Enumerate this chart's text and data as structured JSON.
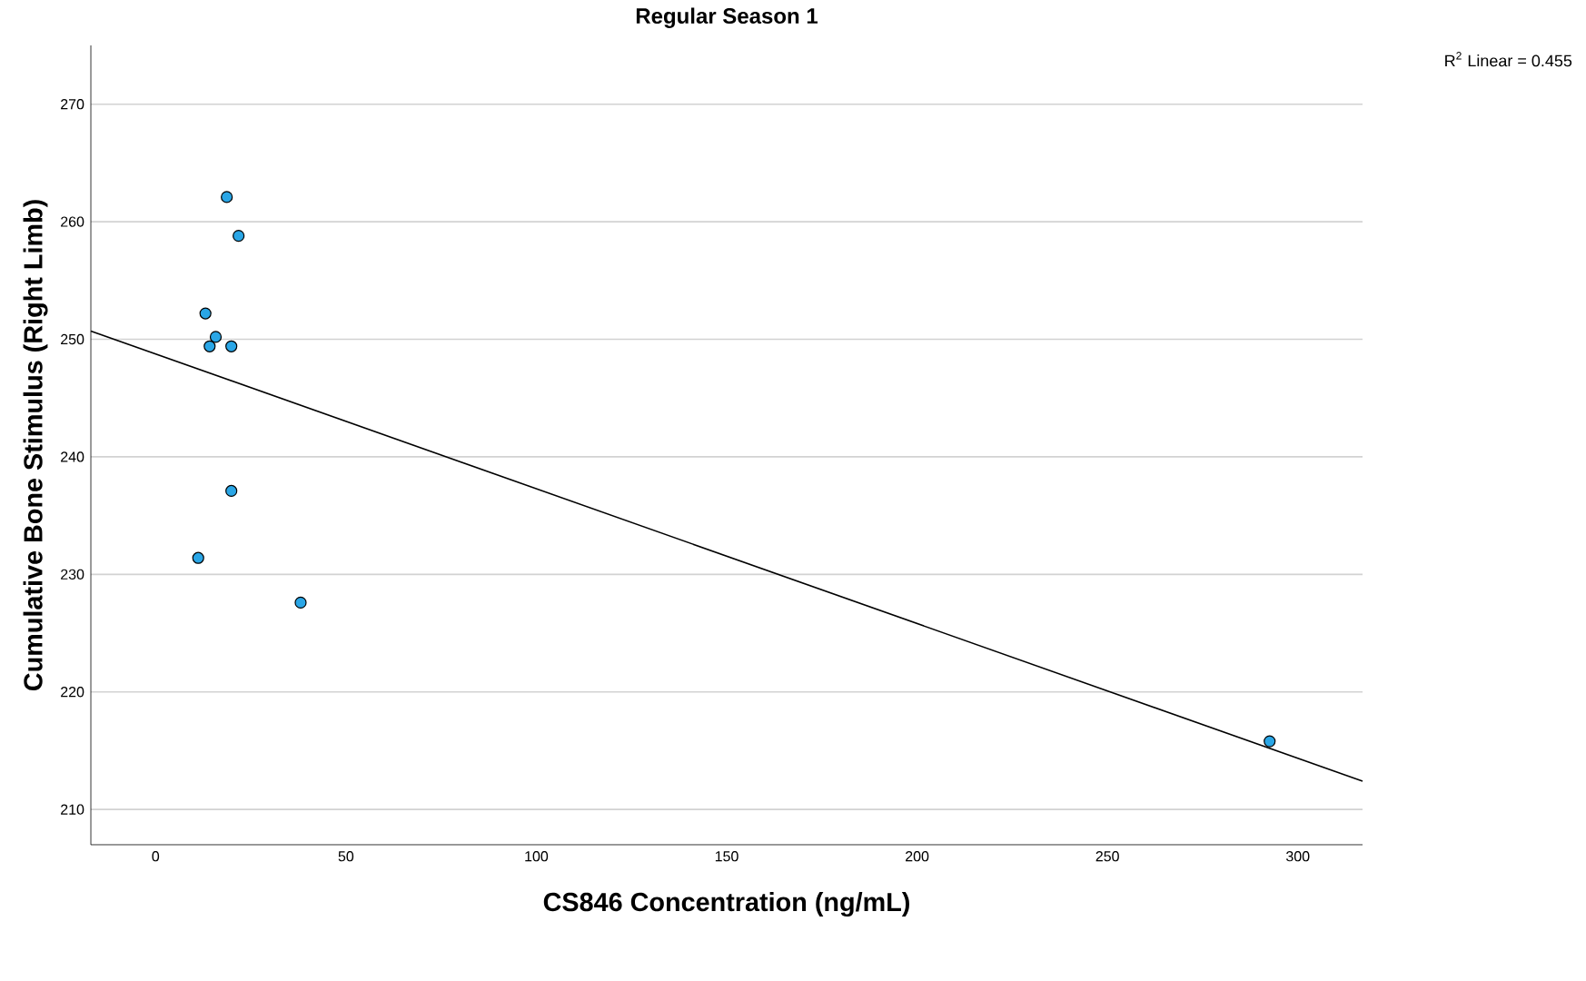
{
  "chart_data": {
    "type": "scatter",
    "title": "Regular Season 1",
    "xlabel": "CS846 Concentration (ng/mL)",
    "ylabel": "Cumulative Bone Stimulus (Right Limb)",
    "annotations": [
      "R$^{2}$ Linear = 0.455"
    ],
    "xlim": [
      -17,
      317
    ],
    "ylim": [
      207,
      275
    ],
    "xticks": [
      0,
      50,
      100,
      150,
      200,
      250,
      300
    ],
    "yticks": [
      210,
      220,
      230,
      240,
      250,
      260,
      270
    ],
    "grid": "y",
    "marker": "circle",
    "series": [
      {
        "type": "scatter",
        "color": "#2aa6e6",
        "x": [
          18.7,
          21.8,
          13.1,
          15.8,
          14.2,
          19.9,
          19.9,
          11.2,
          38.1,
          292.6
        ],
        "values": [
          262.1,
          258.8,
          252.2,
          250.2,
          249.4,
          249.4,
          237.1,
          231.4,
          227.6,
          215.8
        ]
      },
      {
        "type": "line",
        "marker": "none",
        "color": "#000000",
        "x": [
          -17,
          317
        ],
        "values": [
          250.7,
          212.4
        ]
      }
    ]
  }
}
